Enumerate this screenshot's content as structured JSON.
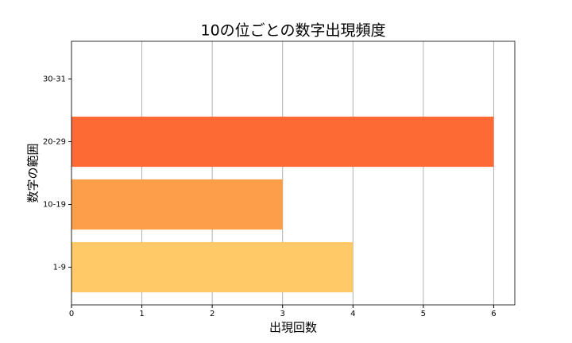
{
  "chart_data": {
    "type": "barh",
    "title": "10の位ごとの数字出現頻度",
    "xlabel": "出現回数",
    "ylabel": "数字の範囲",
    "categories": [
      "1-9",
      "10-19",
      "20-29",
      "30-31"
    ],
    "values": [
      4,
      3,
      6,
      0
    ],
    "colors": [
      "#fec966",
      "#fd9f48",
      "#fd6a34",
      "#fd6a34"
    ],
    "xlim": [
      0,
      6.3
    ],
    "xticks": [
      0,
      1,
      2,
      3,
      4,
      5,
      6
    ],
    "grid": true
  }
}
